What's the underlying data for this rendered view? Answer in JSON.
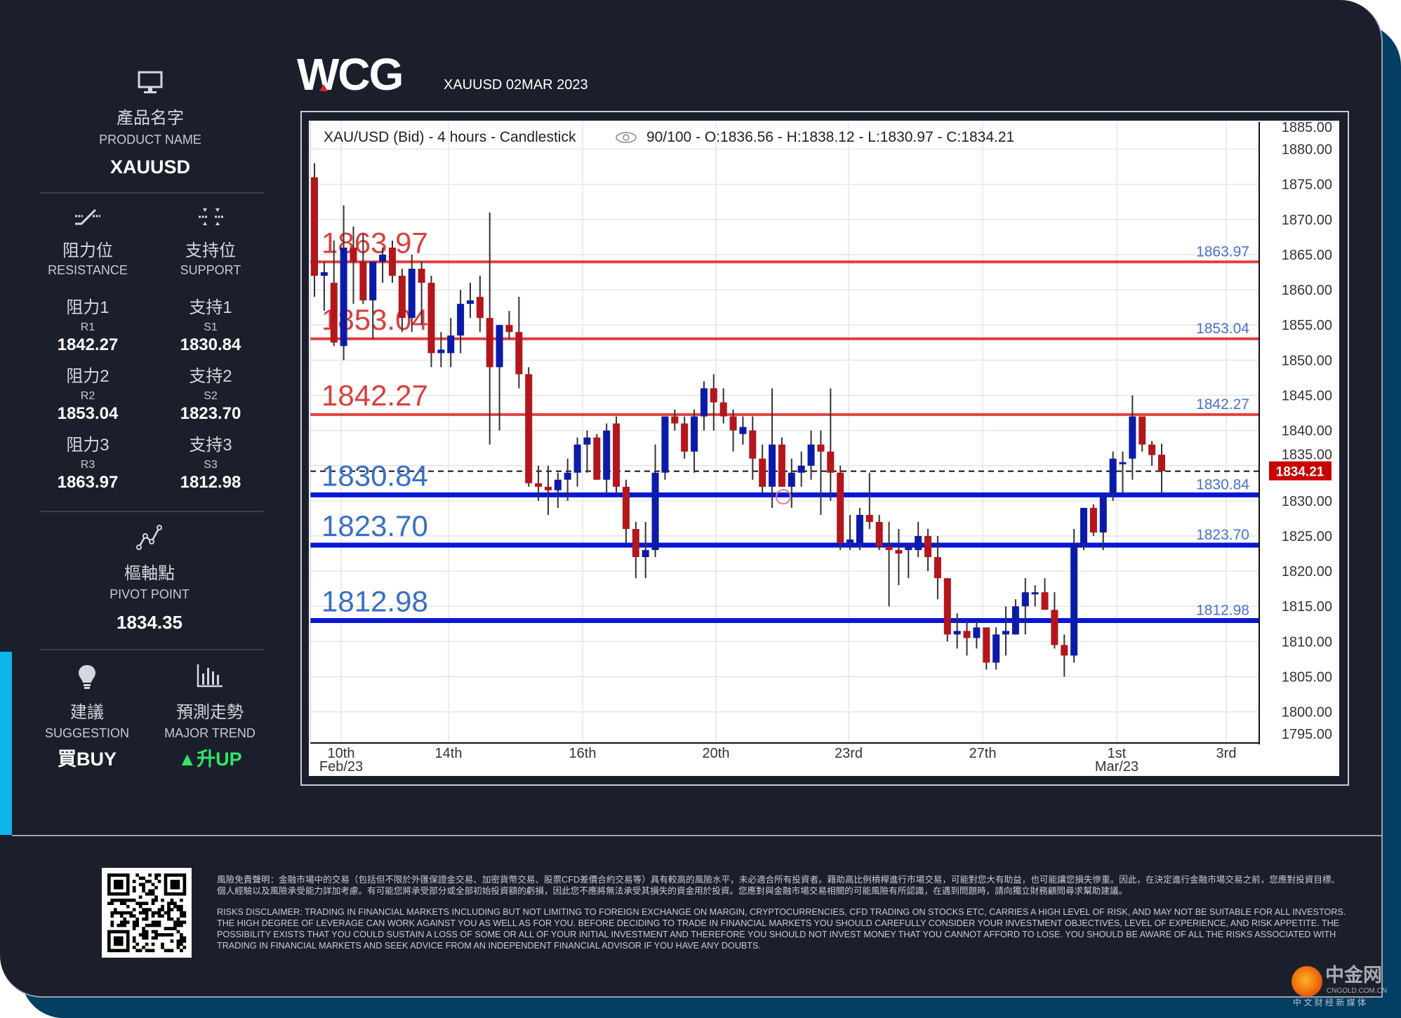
{
  "header": {
    "brand": "WCG",
    "title": "XAUUSD 02MAR 2023"
  },
  "sidebar": {
    "product": {
      "icon": "monitor-icon",
      "label_zh": "產品名字",
      "label_en": "PRODUCT NAME",
      "value": "XAUUSD"
    },
    "resistance": {
      "icon": "resistance-line-icon",
      "label_zh": "阻力位",
      "label_en": "RESISTANCE",
      "items": [
        {
          "label_zh": "阻力1",
          "code": "R1",
          "value": "1842.27"
        },
        {
          "label_zh": "阻力2",
          "code": "R2",
          "value": "1853.04"
        },
        {
          "label_zh": "阻力3",
          "code": "R3",
          "value": "1863.97"
        }
      ]
    },
    "support": {
      "icon": "support-line-icon",
      "label_zh": "支持位",
      "label_en": "SUPPORT",
      "items": [
        {
          "label_zh": "支持1",
          "code": "S1",
          "value": "1830.84"
        },
        {
          "label_zh": "支持2",
          "code": "S2",
          "value": "1823.70"
        },
        {
          "label_zh": "支持3",
          "code": "S3",
          "value": "1812.98"
        }
      ]
    },
    "pivot": {
      "icon": "pivot-chart-icon",
      "label_zh": "樞軸點",
      "label_en": "PIVOT POINT",
      "value": "1834.35"
    },
    "suggestion": {
      "icon": "lightbulb-icon",
      "label_zh": "建議",
      "label_en": "SUGGESTION",
      "value": "買BUY"
    },
    "trend": {
      "icon": "bar-chart-icon",
      "label_zh": "預測走勢",
      "label_en": "MAJOR TREND",
      "value": "升UP",
      "arrow": "▲",
      "color": "#2ee86a"
    }
  },
  "chart_data": {
    "type": "candlestick",
    "title": "XAU/USD (Bid) - 4 hours - Candlestick",
    "info": "90/100 - O:1836.56 - H:1838.12 - L:1830.97 - C:1834.21",
    "ylim": [
      1794.5,
      1884.8
    ],
    "yticks": [
      "1885.00",
      "1880.00",
      "1875.00",
      "1870.00",
      "1865.00",
      "1860.00",
      "1855.00",
      "1850.00",
      "1845.00",
      "1840.00",
      "1835.00",
      "1830.00",
      "1825.00",
      "1820.00",
      "1815.00",
      "1810.00",
      "1805.00",
      "1800.00",
      "1795.00"
    ],
    "xticks": [
      {
        "label": "10th",
        "sub": "Feb/23"
      },
      {
        "label": "14th",
        "sub": ""
      },
      {
        "label": "16th",
        "sub": ""
      },
      {
        "label": "20th",
        "sub": ""
      },
      {
        "label": "23rd",
        "sub": ""
      },
      {
        "label": "27th",
        "sub": ""
      },
      {
        "label": "1st",
        "sub": "Mar/23"
      },
      {
        "label": "3rd",
        "sub": ""
      }
    ],
    "grid": true,
    "colors": {
      "up": "#0b1ba8",
      "down": "#b3161b",
      "resistance": "#e0413f",
      "support": "#0a16d6",
      "last_price_tag": "#c80000"
    },
    "last_price": "1834.21",
    "levels": [
      {
        "value": 1863.97,
        "label": "1863.97",
        "kind": "resistance"
      },
      {
        "value": 1853.04,
        "label": "1853.04",
        "kind": "resistance"
      },
      {
        "value": 1842.27,
        "label": "1842.27",
        "kind": "resistance"
      },
      {
        "value": 1830.84,
        "label": "1830.84",
        "kind": "support"
      },
      {
        "value": 1823.7,
        "label": "1823.70",
        "kind": "support"
      },
      {
        "value": 1812.98,
        "label": "1812.98",
        "kind": "support"
      }
    ],
    "candles_ohlc": [
      [
        1876,
        1878,
        1859,
        1862
      ],
      [
        1862,
        1864,
        1857,
        1862.5
      ],
      [
        1861,
        1867,
        1852,
        1852.5
      ],
      [
        1852,
        1872,
        1850,
        1866
      ],
      [
        1866,
        1869,
        1858,
        1864
      ],
      [
        1864,
        1868,
        1858,
        1858.5
      ],
      [
        1858.5,
        1864,
        1853,
        1864
      ],
      [
        1864,
        1866,
        1861,
        1865
      ],
      [
        1866,
        1867,
        1861,
        1862
      ],
      [
        1862,
        1863,
        1854,
        1856
      ],
      [
        1856,
        1865,
        1854,
        1863
      ],
      [
        1863,
        1864,
        1855,
        1861
      ],
      [
        1861,
        1862,
        1849,
        1851
      ],
      [
        1851,
        1854,
        1849,
        1851.5
      ],
      [
        1851,
        1856,
        1849,
        1853.5
      ],
      [
        1853.5,
        1860,
        1851,
        1858
      ],
      [
        1858,
        1861,
        1856,
        1858.5
      ],
      [
        1859,
        1862,
        1854,
        1856
      ],
      [
        1856,
        1871,
        1838,
        1849
      ],
      [
        1849,
        1855,
        1840,
        1855
      ],
      [
        1855,
        1857,
        1853,
        1854
      ],
      [
        1854,
        1859,
        1846,
        1848
      ],
      [
        1848,
        1849,
        1832,
        1832.5
      ],
      [
        1832.5,
        1835,
        1830,
        1832
      ],
      [
        1832,
        1835,
        1828,
        1831.5
      ],
      [
        1831.5,
        1834,
        1829,
        1833
      ],
      [
        1833,
        1836,
        1830,
        1834
      ],
      [
        1834,
        1839,
        1832,
        1838
      ],
      [
        1838,
        1840,
        1834,
        1839
      ],
      [
        1839,
        1839.5,
        1833,
        1833
      ],
      [
        1833,
        1841,
        1831,
        1840
      ],
      [
        1841,
        1842,
        1831,
        1832
      ],
      [
        1832,
        1833,
        1824,
        1826
      ],
      [
        1826,
        1827,
        1819,
        1822
      ],
      [
        1822,
        1827,
        1819,
        1823
      ],
      [
        1823,
        1838,
        1822,
        1834
      ],
      [
        1834,
        1842,
        1833,
        1842
      ],
      [
        1842,
        1843,
        1840,
        1841
      ],
      [
        1841,
        1842,
        1836,
        1837
      ],
      [
        1837,
        1843,
        1834,
        1842
      ],
      [
        1842,
        1847,
        1840,
        1846
      ],
      [
        1846,
        1848,
        1840,
        1844
      ],
      [
        1844,
        1846,
        1841,
        1842
      ],
      [
        1842,
        1843,
        1837,
        1840
      ],
      [
        1839.5,
        1842,
        1838,
        1840.5
      ],
      [
        1840,
        1842,
        1833,
        1836
      ],
      [
        1836,
        1838,
        1831,
        1832
      ],
      [
        1832,
        1846,
        1829,
        1838
      ],
      [
        1838,
        1839,
        1832,
        1832
      ],
      [
        1832,
        1836,
        1829,
        1834
      ],
      [
        1834,
        1837,
        1832,
        1835
      ],
      [
        1835,
        1840,
        1833,
        1838
      ],
      [
        1838,
        1840,
        1828,
        1837
      ],
      [
        1837,
        1846,
        1830,
        1834
      ],
      [
        1834,
        1835,
        1823,
        1824
      ],
      [
        1824,
        1828,
        1823,
        1824.5
      ],
      [
        1824,
        1829,
        1823,
        1828
      ],
      [
        1828,
        1834,
        1826,
        1827
      ],
      [
        1827,
        1828,
        1823,
        1823.5
      ],
      [
        1823.5,
        1827,
        1815,
        1823
      ],
      [
        1823,
        1826,
        1818,
        1822.5
      ],
      [
        1823,
        1824,
        1819,
        1823.5
      ],
      [
        1823,
        1827,
        1822,
        1825
      ],
      [
        1825,
        1826,
        1820,
        1822
      ],
      [
        1822,
        1825,
        1816,
        1819
      ],
      [
        1819,
        1819,
        1810,
        1811
      ],
      [
        1811,
        1814,
        1809,
        1811.5
      ],
      [
        1811.5,
        1813,
        1808,
        1810.5
      ],
      [
        1810.5,
        1813,
        1809,
        1812
      ],
      [
        1812,
        1812,
        1806,
        1807
      ],
      [
        1807,
        1812,
        1806,
        1811
      ],
      [
        1811,
        1815,
        1808,
        1811.5
      ],
      [
        1811,
        1816,
        1811,
        1815
      ],
      [
        1815,
        1819,
        1811,
        1817
      ],
      [
        1817,
        1818,
        1815,
        1817
      ],
      [
        1817,
        1819,
        1815,
        1814.5
      ],
      [
        1814.5,
        1817,
        1809,
        1809.5
      ],
      [
        1809.5,
        1811,
        1805,
        1808
      ],
      [
        1808,
        1826,
        1807,
        1824
      ],
      [
        1824,
        1829,
        1823,
        1829
      ],
      [
        1829,
        1829.5,
        1825,
        1825.5
      ],
      [
        1825.5,
        1831,
        1823,
        1831
      ],
      [
        1831,
        1837,
        1830,
        1836
      ],
      [
        1835.5,
        1837,
        1831,
        1835.5
      ],
      [
        1836,
        1845,
        1833,
        1842
      ],
      [
        1842,
        1842,
        1837,
        1838
      ],
      [
        1838,
        1838.5,
        1835,
        1836.5
      ],
      [
        1836.56,
        1838.12,
        1830.97,
        1834.21
      ]
    ]
  },
  "footer": {
    "disclaimer_zh": "風險免責聲明：金融市場中的交易（包括但不限於外匯保證金交易、加密貨幣交易、股票CFD差價合約交易等）具有較高的風險水平，未必適合所有投資者。藉助高比例槓桿進行市場交易，可能對您大有助益，也可能讓您損失慘重。因此，在決定進行金融市場交易之前，您應對投資目標、個人經驗以及風險承受能力詳加考慮。有可能您將承受部分或全部初始投資額的虧損，因此您不應將無法承受其損失的資金用於投資。您應對與金融市場交易相關的可能風險有所認識，在遇到問題時，請向獨立財務顧問尋求幫助建議。",
    "disclaimer_en": "RISKS DISCLAIMER: TRADING IN FINANCIAL MARKETS INCLUDING BUT NOT LIMITING TO FOREIGN EXCHANGE ON MARGIN, CRYPTOCURRENCIES, CFD TRADING ON STOCKS ETC, CARRIES A HIGH LEVEL OF RISK, AND MAY NOT BE SUITABLE FOR ALL INVESTORS. THE HIGH DEGREE OF LEVERAGE CAN WORK AGAINST YOU AS WELL AS FOR YOU. BEFORE DECIDING TO TRADE IN FINANCIAL MARKETS YOU SHOULD CAREFULLY CONSIDER YOUR INVESTMENT OBJECTIVES, LEVEL OF EXPERIENCE, AND RISK APPETITE. THE POSSIBILITY EXISTS THAT YOU COULD SUSTAIN A LOSS OF SOME OR ALL OF YOUR INITIAL INVESTMENT AND THEREFORE YOU SHOULD NOT INVEST MONEY THAT YOU CANNOT AFFORD TO LOSE. YOU SHOULD BE AWARE OF ALL THE RISKS ASSOCIATED WITH TRADING IN FINANCIAL MARKETS AND SEEK ADVICE FROM AN INDEPENDENT FINANCIAL ADVISOR IF YOU HAVE ANY DOUBTS.",
    "qr_icon": "qr-code-icon",
    "watermark": {
      "name": "中金网",
      "domain": "CNGOLD.COM.CN",
      "tagline": "中 文 财 经 新 媒 体"
    }
  }
}
